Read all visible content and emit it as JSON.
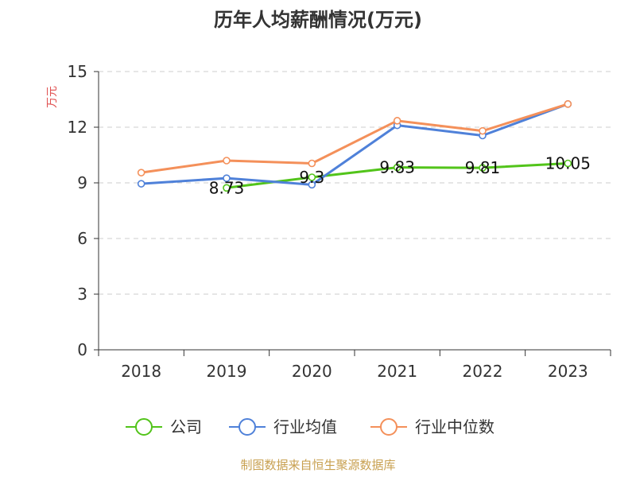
{
  "chart_data": {
    "type": "line",
    "title": "历年人均薪酬情况(万元)",
    "ylabel": "万元",
    "ylim": [
      0,
      15
    ],
    "yticks": [
      0,
      3,
      6,
      9,
      12,
      15
    ],
    "categories": [
      "2018",
      "2019",
      "2020",
      "2021",
      "2022",
      "2023"
    ],
    "grid": true,
    "legend_position": "bottom",
    "series": [
      {
        "name": "公司",
        "color": "#52c41a",
        "values": [
          null,
          8.73,
          9.3,
          9.83,
          9.81,
          10.05
        ],
        "labels": [
          "",
          "8.73",
          "9.3",
          "9.83",
          "9.81",
          "10.05"
        ]
      },
      {
        "name": "行业均值",
        "color": "#4f81d9",
        "values": [
          8.95,
          9.25,
          8.9,
          12.1,
          11.55,
          13.25
        ]
      },
      {
        "name": "行业中位数",
        "color": "#f4905a",
        "values": [
          9.55,
          10.2,
          10.05,
          12.35,
          11.8,
          13.25
        ]
      }
    ],
    "source": "制图数据来自恒生聚源数据库",
    "source_color": "#c8a050",
    "ylabel_color": "#e05050"
  }
}
